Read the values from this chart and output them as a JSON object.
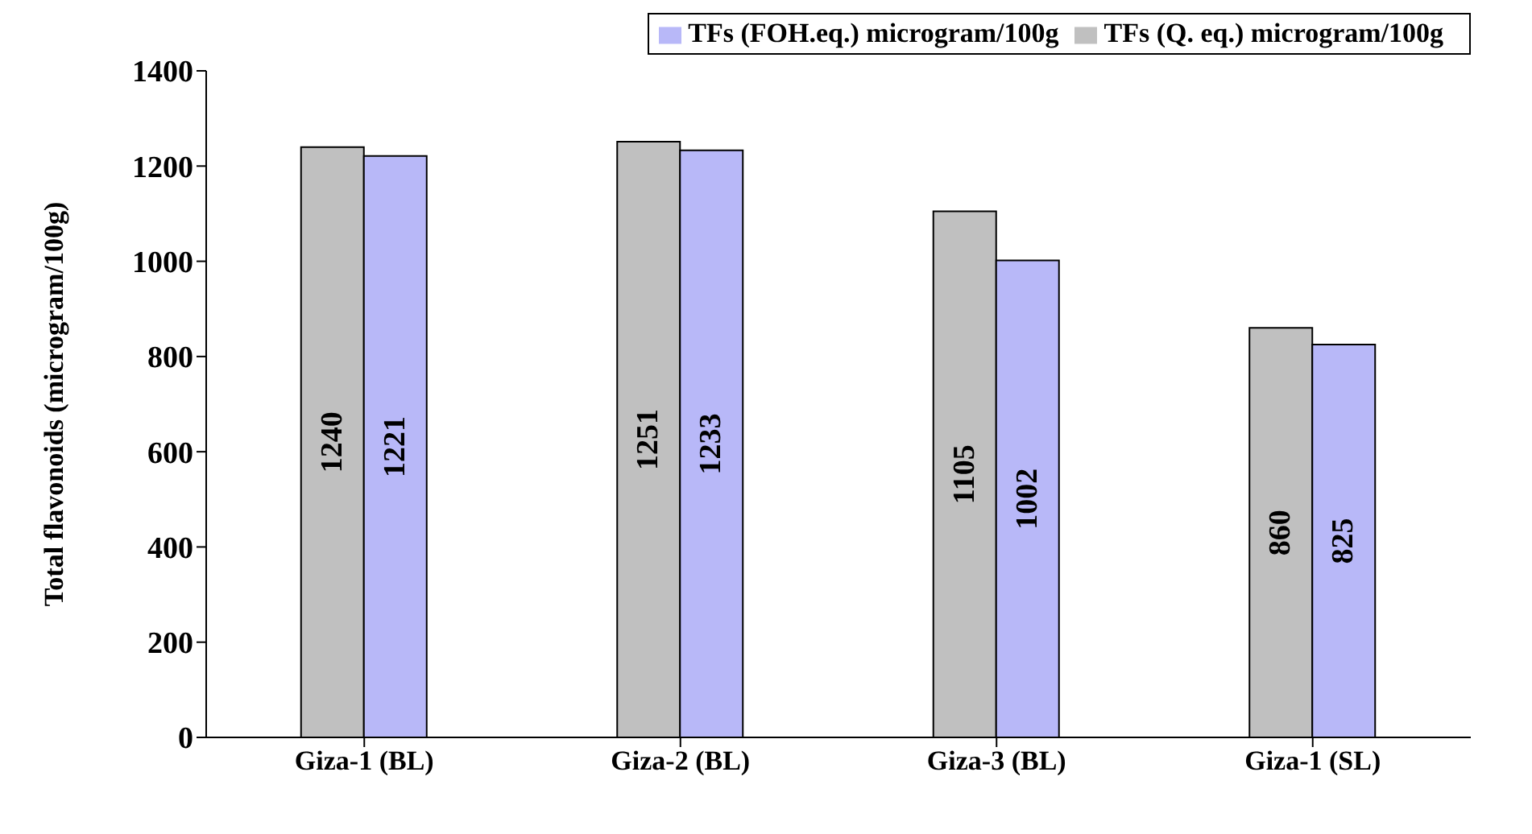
{
  "chart_data": {
    "type": "bar",
    "ylabel": "Total flavonoids (microgram/100g)",
    "categories": [
      "Giza-1 (BL)",
      "Giza-2 (BL)",
      "Giza-3 (BL)",
      "Giza-1 (SL)"
    ],
    "series": [
      {
        "name": "TFs  (Q. eq.) microgram/100g",
        "color": "#c0c0c0",
        "values": [
          1240,
          1251,
          1105,
          860
        ]
      },
      {
        "name": "TFs  (FOH.eq.) microgram/100g",
        "color": "#b8b8f8",
        "values": [
          1221,
          1233,
          1002,
          825
        ]
      }
    ],
    "ylim": [
      0,
      1400
    ],
    "yticks": [
      0,
      200,
      400,
      600,
      800,
      1000,
      1200,
      1400
    ],
    "data_labels": true,
    "legend": "top right",
    "grid": false
  }
}
